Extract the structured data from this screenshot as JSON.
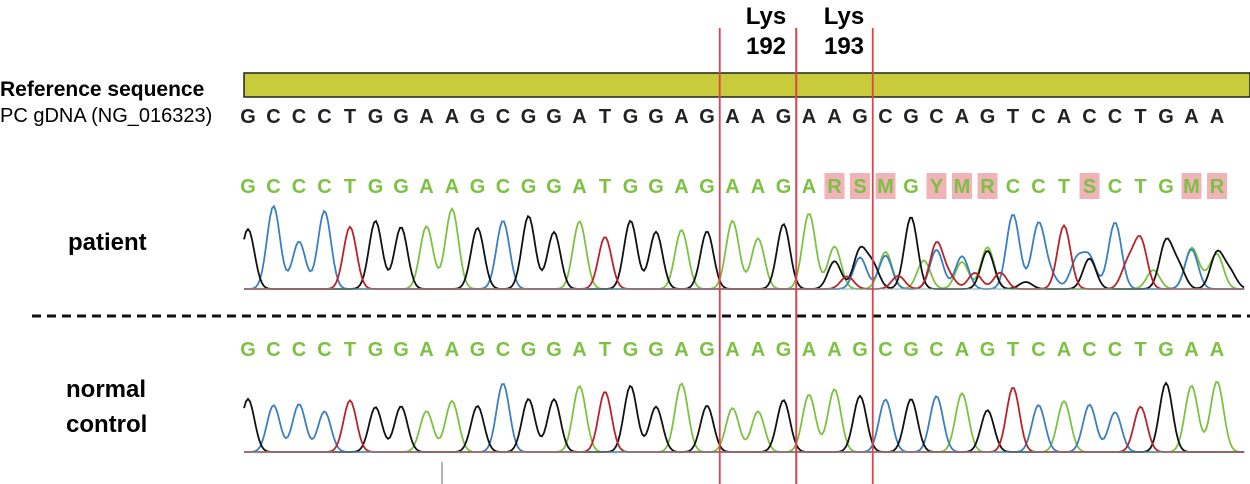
{
  "codons": [
    {
      "name": "Lys",
      "number": "192"
    },
    {
      "name": "Lys",
      "number": "193"
    }
  ],
  "reference": {
    "title": "Reference sequence",
    "source_label": "PC gDNA (NG_016323)",
    "bar_color": "#c8cc3a",
    "sequence": "GCCCTGGAAGCGGATGGAGAAGAAGCGCAGTCACCTGAA"
  },
  "patient": {
    "label": "patient",
    "sequence": "GCCCTGGAAGCGGATGGAGAAGARSMGYMRCCTSCTGMR",
    "ambiguous_highlight_color": "#f2b3b8"
  },
  "control": {
    "label_line1": "normal",
    "label_line2": "control",
    "sequence": "GCCCTGGAAGCGGATGGAGAAGAAGCGCAGTCACCTGAA"
  },
  "trace_colors": {
    "A": "#7cc142",
    "C": "#3a7fc1",
    "G": "#111111",
    "T": "#b8242a"
  },
  "marker_line_color": "#d9454a"
}
